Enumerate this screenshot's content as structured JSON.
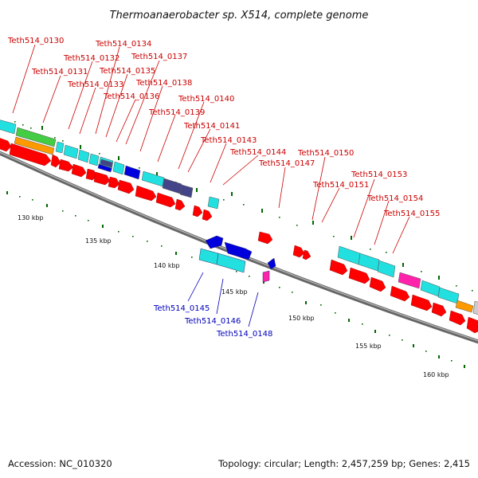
{
  "title": "Thermoanaerobacter sp. X514, complete genome",
  "footer": {
    "accession": "Accession: NC_010320",
    "summary": "Topology: circular; Length: 2,457,259 bp; Genes: 2,415"
  },
  "colors": {
    "forward_label": "#cc0000",
    "reverse_label": "#0000bb",
    "cds": "#ff0000",
    "cyan": "#22e0e0",
    "blue": "#0000dd",
    "navy": "#444488",
    "green": "#44cc44",
    "orange": "#ff9900",
    "magenta": "#ff22aa",
    "tick": "#006600",
    "backbone": "#888888"
  },
  "scale_labels": [
    "130 kbp",
    "135 kbp",
    "140 kbp",
    "145 kbp",
    "150 kbp",
    "155 kbp",
    "160 kbp"
  ],
  "forward_genes": [
    "Teth514_0130",
    "Teth514_0131",
    "Teth514_0132",
    "Teth514_0133",
    "Teth514_0134",
    "Teth514_0135",
    "Teth514_0136",
    "Teth514_0137",
    "Teth514_0138",
    "Teth514_0139",
    "Teth514_0140",
    "Teth514_0141",
    "Teth514_0143",
    "Teth514_0144",
    "Teth514_0147",
    "Teth514_0150",
    "Teth514_0151",
    "Teth514_0153",
    "Teth514_0154",
    "Teth514_0155"
  ],
  "reverse_genes": [
    "Teth514_0145",
    "Teth514_0146",
    "Teth514_0148"
  ]
}
